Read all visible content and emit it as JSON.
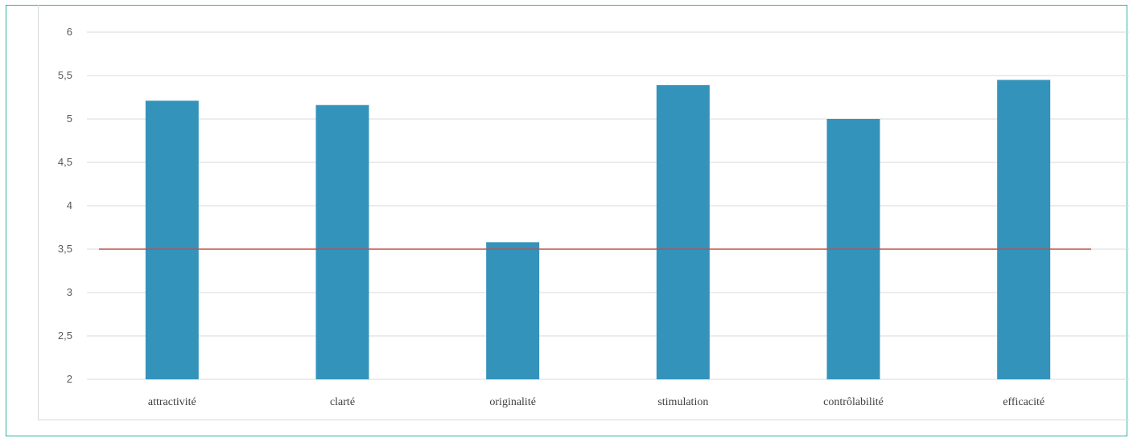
{
  "chart_data": {
    "type": "bar",
    "categories": [
      "attractivité",
      "clarté",
      "originalité",
      "stimulation",
      "contrôlabilité",
      "efficacité"
    ],
    "values": [
      5.21,
      5.16,
      3.58,
      5.39,
      5.0,
      5.45
    ],
    "ylim": [
      2,
      6
    ],
    "yticks": [
      "2",
      "2,5",
      "3",
      "3,5",
      "4",
      "4,5",
      "5",
      "5,5",
      "6"
    ],
    "reference_line": 3.5,
    "grid": true,
    "colors": {
      "bar": "#3493bb",
      "reference_line": "#c0504d",
      "grid": "#d9d9d9"
    }
  }
}
